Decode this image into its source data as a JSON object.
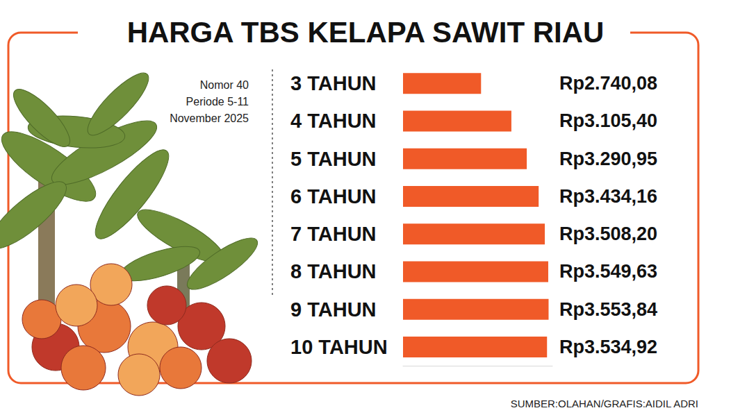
{
  "chart_data": {
    "type": "bar",
    "title": "HARGA TBS KELAPA SAWIT RIAU",
    "subtitle": "Nomor 40\nPeriode 5-11\nNovember 2025",
    "source": "SUMBER:OLAHAN/GRAFIS:AIDIL ADRI",
    "categories": [
      "3 TAHUN",
      "4 TAHUN",
      "5 TAHUN",
      "6 TAHUN",
      "7 TAHUN",
      "8 TAHUN",
      "9 TAHUN",
      "10 TAHUN"
    ],
    "values": [
      2740.08,
      3105.4,
      3290.95,
      3434.16,
      3508.2,
      3549.63,
      3553.84,
      3534.92
    ],
    "value_labels": [
      "Rp2.740,08",
      "Rp3.105,40",
      "Rp3.290,95",
      "Rp3.434,16",
      "Rp3.508,20",
      "Rp3.549,63",
      "Rp3.553,84",
      "Rp3.534,92"
    ],
    "color": "#f05a28",
    "orientation": "horizontal",
    "xlim": [
      1800,
      3600
    ],
    "data_labels": true,
    "tick_labels": "y",
    "grid": false
  }
}
